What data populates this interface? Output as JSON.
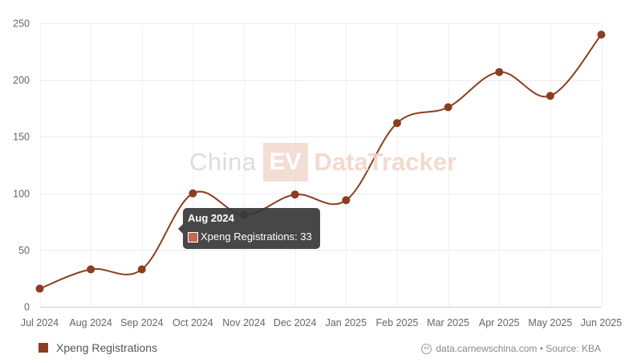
{
  "chart_data": {
    "type": "line",
    "categories": [
      "Jul 2024",
      "Aug 2024",
      "Sep 2024",
      "Oct 2024",
      "Nov 2024",
      "Dec 2024",
      "Jan 2025",
      "Feb 2025",
      "Mar 2025",
      "Apr 2025",
      "May 2025",
      "Jun 2025"
    ],
    "series": [
      {
        "name": "Xpeng Registrations",
        "values": [
          16,
          33,
          33,
          100,
          81,
          99,
          94,
          162,
          176,
          207,
          186,
          240
        ],
        "color": "#8b3e1f"
      }
    ],
    "ylim": [
      0,
      250
    ],
    "yticks": [
      "0",
      "50",
      "100",
      "150",
      "200",
      "250"
    ],
    "grid": true,
    "smooth": true,
    "legend_position": "bottom-left"
  },
  "watermark": {
    "part1": "China",
    "part2": "EV",
    "part3": "DataTracker"
  },
  "tooltip": {
    "title": "Aug 2024",
    "label": "Xpeng Registrations: 33"
  },
  "legend": {
    "label": "Xpeng Registrations"
  },
  "credit": {
    "icon": "cc-icon",
    "text": "data.carnewschina.com • Source: KBA"
  }
}
